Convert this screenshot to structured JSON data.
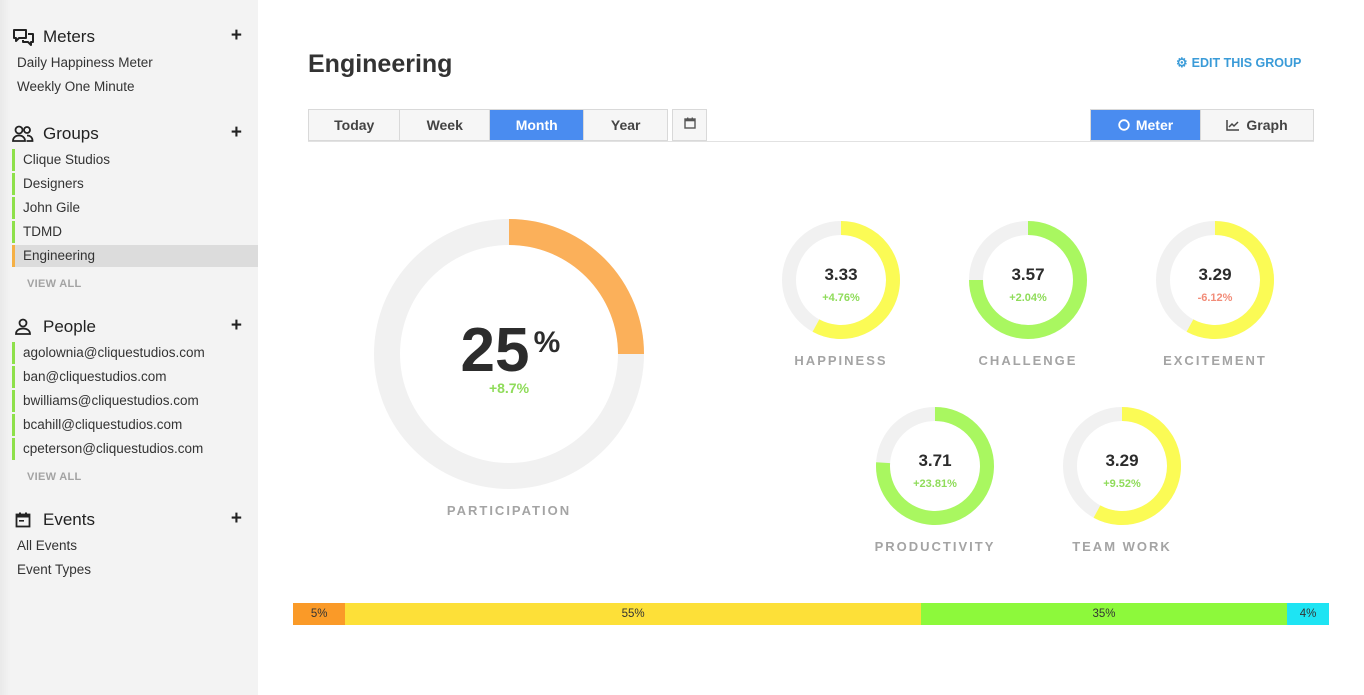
{
  "sidebar": {
    "meters": {
      "title": "Meters",
      "icon": "chat-bubbles-icon",
      "add": "+",
      "items": [
        "Daily Happiness Meter",
        "Weekly One Minute"
      ]
    },
    "groups": {
      "title": "Groups",
      "icon": "users-icon",
      "add": "+",
      "items": [
        "Clique Studios",
        "Designers",
        "John Gile",
        "TDMD",
        "Engineering"
      ],
      "active": "Engineering",
      "view_all": "VIEW ALL"
    },
    "people": {
      "title": "People",
      "icon": "person-icon",
      "add": "+",
      "items": [
        "agolownia@cliquestudios.com",
        "ban@cliquestudios.com",
        "bwilliams@cliquestudios.com",
        "bcahill@cliquestudios.com",
        "cpeterson@cliquestudios.com"
      ],
      "view_all": "VIEW ALL"
    },
    "events": {
      "title": "Events",
      "icon": "calendar-icon",
      "add": "+",
      "items": [
        "All Events",
        "Event Types"
      ]
    }
  },
  "header": {
    "title": "Engineering",
    "edit_label": "EDIT THIS GROUP"
  },
  "range_tabs": {
    "items": [
      "Today",
      "Week",
      "Month",
      "Year"
    ],
    "selected": "Month"
  },
  "view_toggle": {
    "meter_label": "Meter",
    "graph_label": "Graph",
    "selected": "Meter"
  },
  "participation": {
    "value": "25",
    "unit": "%",
    "change": "+8.7%",
    "label": "PARTICIPATION",
    "fraction": 0.25
  },
  "meters": [
    {
      "label": "HAPPINESS",
      "score": "3.33",
      "change": "+4.76%",
      "fraction": 0.58,
      "trend": "up",
      "color": "#fbfb55"
    },
    {
      "label": "CHALLENGE",
      "score": "3.57",
      "change": "+2.04%",
      "fraction": 0.75,
      "trend": "up",
      "color": "#a9f760"
    },
    {
      "label": "EXCITEMENT",
      "score": "3.29",
      "change": "-6.12%",
      "fraction": 0.58,
      "trend": "down",
      "color": "#fbfb55"
    },
    {
      "label": "PRODUCTIVITY",
      "score": "3.71",
      "change": "+23.81%",
      "fraction": 0.76,
      "trend": "up",
      "color": "#a9f760"
    },
    {
      "label": "TEAM WORK",
      "score": "3.29",
      "change": "+9.52%",
      "fraction": 0.58,
      "trend": "up",
      "color": "#fbfb55"
    }
  ],
  "distribution": [
    {
      "label": "5%",
      "value": 5,
      "color": "#fa9a28"
    },
    {
      "label": "55%",
      "value": 55,
      "color": "#fde038"
    },
    {
      "label": "35%",
      "value": 35,
      "color": "#8df93b"
    },
    {
      "label": "4%",
      "value": 4,
      "color": "#1ee4f3"
    }
  ],
  "colors": {
    "accent": "#4a8cf0",
    "link": "#3a9bd8",
    "participation": "#fbb05a",
    "positive": "#8fdc5a",
    "negative": "#f28c78",
    "track": "#f1f1f1"
  }
}
